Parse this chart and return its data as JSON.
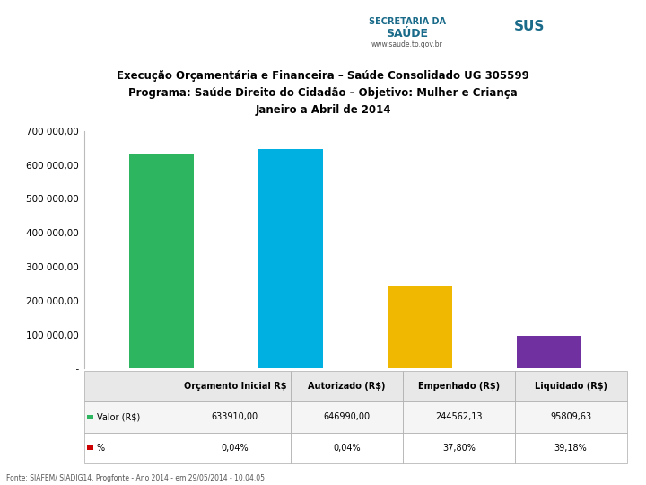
{
  "title_line1": "Execução Orçamentária e Financeira – Saúde Consolidado UG 305599",
  "title_line2": "Programa: Saúde Direito do Cidadão – Objetivo: Mulher e Criança",
  "title_line3": "Janeiro a Abril de 2014",
  "categories": [
    "Orçamento Inicial R$",
    "Autorizado (R$)",
    "Empenhado (R$)",
    "Liquidado (R$)"
  ],
  "values": [
    633910.0,
    646990.0,
    244562.13,
    95809.63
  ],
  "bar_colors": [
    "#2db560",
    "#00b0e0",
    "#f0b800",
    "#7030a0"
  ],
  "ylim": [
    0,
    700000
  ],
  "yticks": [
    0,
    100000,
    200000,
    300000,
    400000,
    500000,
    600000,
    700000
  ],
  "row1_label": "Valor (R$)",
  "row2_label": "%",
  "row1_values": [
    "633910,00",
    "646990,00",
    "244562,13",
    "95809,63"
  ],
  "row2_values": [
    "0,04%",
    "0,04%",
    "37,80%",
    "39,18%"
  ],
  "row1_sq_color": "#2db560",
  "row2_sq_color": "#cc0000",
  "footer": "Fonte: SIAFEM/ SIADIG14. Progfonte - Ano 2014 - em 29/05/2014 - 10.04.05",
  "bg_color": "#ffffff",
  "divider_color": "#1a6b8a",
  "table_header_bg": "#e8e8e8",
  "row1_bg": "#f5f5f5",
  "row2_bg": "#ffffff",
  "table_border_color": "#aaaaaa"
}
